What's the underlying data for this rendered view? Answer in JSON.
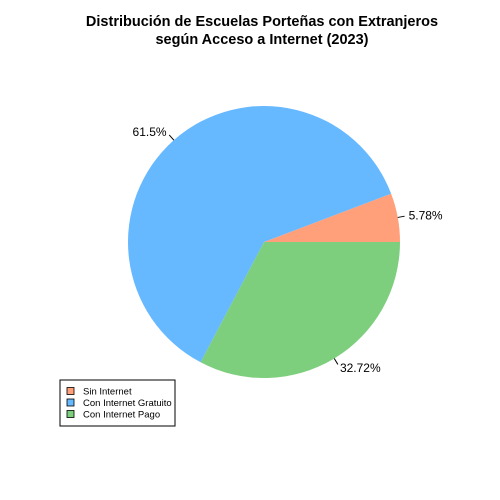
{
  "chart_data": {
    "type": "pie",
    "title_lines": [
      "Distribución de Escuelas Porteñas con Extranjeros",
      "según Acceso a Internet (2023)"
    ],
    "categories": [
      "Sin Internet",
      "Con Internet Gratuito",
      "Con Internet Pago"
    ],
    "values": [
      5.78,
      61.5,
      32.72
    ],
    "labels": [
      "5.78%",
      "61.5%",
      "32.72%"
    ],
    "colors": [
      "#FFA07A",
      "#66B8FF",
      "#7DCE7D"
    ],
    "start_angle_deg": 0,
    "direction": "counterclockwise",
    "legend_position": "bottom-left"
  }
}
